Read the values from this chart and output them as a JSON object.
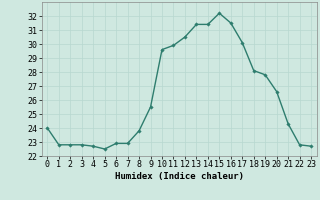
{
  "x": [
    0,
    1,
    2,
    3,
    4,
    5,
    6,
    7,
    8,
    9,
    10,
    11,
    12,
    13,
    14,
    15,
    16,
    17,
    18,
    19,
    20,
    21,
    22,
    23
  ],
  "y": [
    24.0,
    22.8,
    22.8,
    22.8,
    22.7,
    22.5,
    22.9,
    22.9,
    23.8,
    25.5,
    29.6,
    29.9,
    30.5,
    31.4,
    31.4,
    32.2,
    31.5,
    30.1,
    28.1,
    27.8,
    26.6,
    24.3,
    22.8,
    22.7
  ],
  "line_color": "#2e7d6e",
  "marker": "D",
  "markersize": 1.8,
  "linewidth": 1.0,
  "bg_color": "#cfe8e0",
  "grid_color": "#b8d8d0",
  "xlabel": "Humidex (Indice chaleur)",
  "xlabel_fontsize": 6.5,
  "tick_fontsize": 6,
  "ylim": [
    22,
    33
  ],
  "yticks": [
    22,
    23,
    24,
    25,
    26,
    27,
    28,
    29,
    30,
    31,
    32
  ],
  "xticks": [
    0,
    1,
    2,
    3,
    4,
    5,
    6,
    7,
    8,
    9,
    10,
    11,
    12,
    13,
    14,
    15,
    16,
    17,
    18,
    19,
    20,
    21,
    22,
    23
  ]
}
